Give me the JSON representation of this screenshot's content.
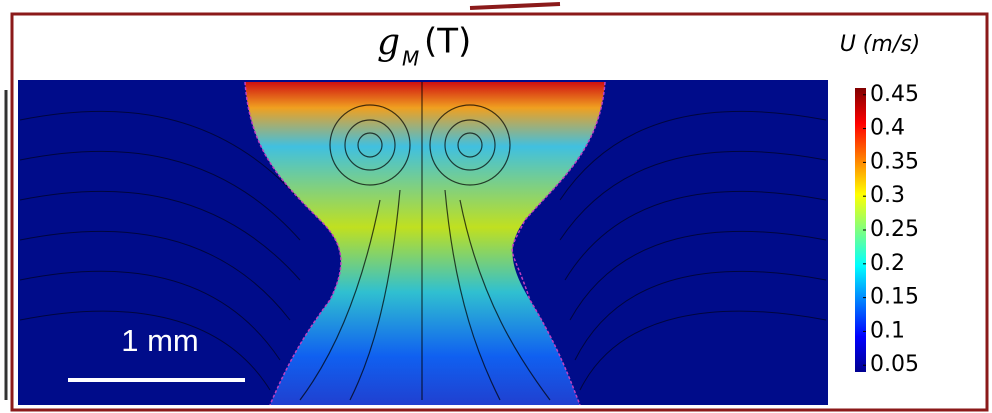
{
  "figure": {
    "title": {
      "symbol": "g",
      "subscript": "M",
      "argument": "(T)"
    },
    "scale_bar": {
      "label": "1 mm"
    },
    "colorbar": {
      "label": "U (m/s)",
      "range": [
        0.04,
        0.46
      ],
      "colormap": "jet",
      "ticks": [
        0.45,
        0.4,
        0.35,
        0.3,
        0.25,
        0.2,
        0.15,
        0.1,
        0.05
      ]
    }
  }
}
